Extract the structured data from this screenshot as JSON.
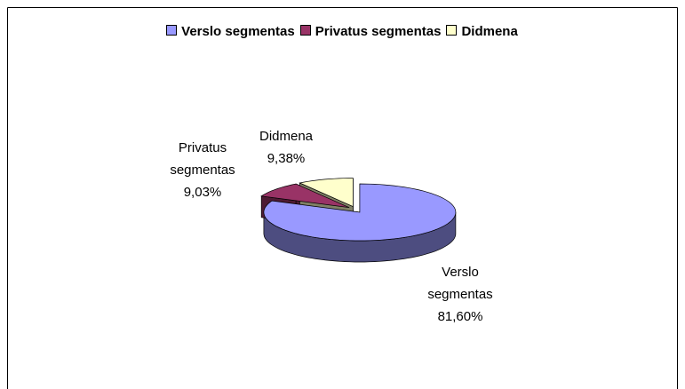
{
  "chart_data": {
    "type": "pie",
    "categories": [
      "Verslo segmentas",
      "Privatus segmentas",
      "Didmena"
    ],
    "values": [
      81.6,
      9.03,
      9.38
    ],
    "value_labels": [
      "81,60%",
      "9,03%",
      "9,38%"
    ],
    "colors": [
      "#9999ff",
      "#993366",
      "#ffffcc"
    ],
    "legend": "top"
  }
}
